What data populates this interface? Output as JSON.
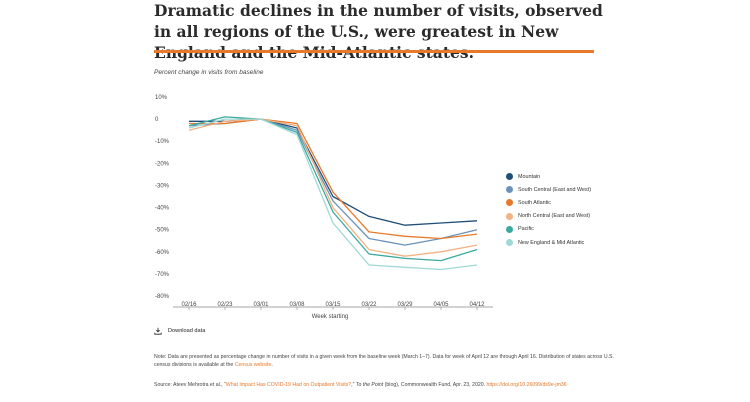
{
  "title": "Dramatic declines in the number of visits, observed in all regions of the U.S., were greatest in New England and the Mid-Atlantic states.",
  "download_label": "Download data",
  "note": {
    "text": "Note: Data are presented as percentage change in number of visits in a given week from the baseline week (March 1–7). Data for week of April 12 are through April 16. Distribution of states across U.S. census divisions is available at the ",
    "link": "Census website",
    "end": "."
  },
  "source": {
    "prefix": "Source: Ateev Mehrotra et al., “",
    "link": "What Impact Has COVID-19 Had on Outpatient Visits?",
    "mid": ",” ",
    "italic": "To the Point",
    "suffix": " (blog), Commonwealth Fund, Apr. 23, 2020.",
    "doi": "https://doi.org/10.26099/ds9e-jm36"
  },
  "colors": {
    "accent": "#e8792b",
    "link": "#e8792b"
  },
  "icons": {
    "download": "download-icon"
  },
  "chart_data": {
    "type": "line",
    "title": "",
    "ylabel": "Percent change in visits from baseline",
    "xlabel": "Week starting",
    "ylim": [
      -80,
      10
    ],
    "yticks": [
      10,
      0,
      -10,
      -20,
      -30,
      -40,
      -50,
      -60,
      -70,
      -80
    ],
    "ytick_labels": [
      "10%",
      "0",
      "-10%",
      "-20%",
      "-30%",
      "-40%",
      "-50%",
      "-60%",
      "-70%",
      "-80%"
    ],
    "categories": [
      "02/16",
      "02/23",
      "03/01",
      "03/08",
      "03/15",
      "03/22",
      "03/29",
      "04/05",
      "04/12"
    ],
    "legend_position": "right",
    "grid": false,
    "series": [
      {
        "name": "Mountain",
        "color": "#1f4e79",
        "values": [
          -1,
          -1,
          0,
          -4,
          -35,
          -44,
          -48,
          -47,
          -46
        ]
      },
      {
        "name": "South Central (East and West)",
        "color": "#6b93b9",
        "values": [
          -3,
          -2,
          0,
          -5,
          -37,
          -54,
          -57,
          -54,
          -50
        ]
      },
      {
        "name": "South Atlantic",
        "color": "#e8792b",
        "values": [
          -2,
          -2,
          0,
          -2,
          -33,
          -51,
          -53,
          -54,
          -52
        ]
      },
      {
        "name": "North Central (East and West)",
        "color": "#f4b183",
        "values": [
          -5,
          -1,
          0,
          -3,
          -40,
          -59,
          -62,
          -60,
          -57
        ]
      },
      {
        "name": "Pacific",
        "color": "#3aa99e",
        "values": [
          -3,
          1,
          0,
          -6,
          -42,
          -61,
          -63,
          -64,
          -59
        ]
      },
      {
        "name": "New England & Mid Atlantic",
        "color": "#9fd8d6",
        "values": [
          -4,
          0,
          0,
          -7,
          -47,
          -66,
          -67,
          -68,
          -66
        ]
      }
    ]
  }
}
